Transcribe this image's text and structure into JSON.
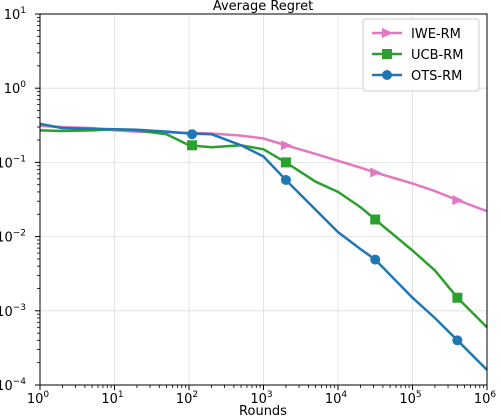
{
  "chart_data": {
    "type": "line",
    "title": "Average Regret",
    "xlabel": "Rounds",
    "ylabel": "",
    "x_scale": "log",
    "y_scale": "log",
    "xlim": [
      1,
      1000000
    ],
    "ylim": [
      0.0001,
      10
    ],
    "grid": true,
    "legend_position": "top-right",
    "x_ticks": [
      {
        "value": 1,
        "base": "10",
        "exp": "0"
      },
      {
        "value": 10,
        "base": "10",
        "exp": "1"
      },
      {
        "value": 100,
        "base": "10",
        "exp": "2"
      },
      {
        "value": 1000,
        "base": "10",
        "exp": "3"
      },
      {
        "value": 10000,
        "base": "10",
        "exp": "4"
      },
      {
        "value": 100000,
        "base": "10",
        "exp": "5"
      },
      {
        "value": 1000000,
        "base": "10",
        "exp": "6"
      }
    ],
    "y_ticks": [
      {
        "value": 0.0001,
        "base": "10",
        "exp": "−4"
      },
      {
        "value": 0.001,
        "base": "10",
        "exp": "−3"
      },
      {
        "value": 0.01,
        "base": "10",
        "exp": "−2"
      },
      {
        "value": 0.1,
        "base": "10",
        "exp": "−1"
      },
      {
        "value": 1,
        "base": "10",
        "exp": "0"
      },
      {
        "value": 10,
        "base": "10",
        "exp": "1"
      }
    ],
    "series": [
      {
        "name": "IWE-RM",
        "color": "#e377c2",
        "marker": "triangle-right",
        "points": [
          [
            1,
            0.31
          ],
          [
            2,
            0.3
          ],
          [
            5,
            0.29
          ],
          [
            10,
            0.27
          ],
          [
            20,
            0.26
          ],
          [
            50,
            0.255
          ],
          [
            100,
            0.25
          ],
          [
            200,
            0.245
          ],
          [
            500,
            0.23
          ],
          [
            1000,
            0.21
          ],
          [
            2000,
            0.17
          ],
          [
            5000,
            0.13
          ],
          [
            10000,
            0.105
          ],
          [
            20000,
            0.085
          ],
          [
            31600,
            0.073
          ],
          [
            100000,
            0.052
          ],
          [
            200000,
            0.041
          ],
          [
            400000,
            0.031
          ],
          [
            1000000,
            0.022
          ]
        ],
        "marker_points": [
          [
            2000,
            0.17
          ],
          [
            31600,
            0.073
          ],
          [
            400000,
            0.031
          ]
        ]
      },
      {
        "name": "UCB-RM",
        "color": "#2ca02c",
        "marker": "square",
        "points": [
          [
            1,
            0.27
          ],
          [
            2,
            0.265
          ],
          [
            5,
            0.27
          ],
          [
            10,
            0.28
          ],
          [
            20,
            0.27
          ],
          [
            50,
            0.24
          ],
          [
            100,
            0.17
          ],
          [
            200,
            0.16
          ],
          [
            500,
            0.17
          ],
          [
            1000,
            0.15
          ],
          [
            2000,
            0.1
          ],
          [
            5000,
            0.055
          ],
          [
            10000,
            0.04
          ],
          [
            20000,
            0.025
          ],
          [
            31600,
            0.017
          ],
          [
            100000,
            0.0065
          ],
          [
            200000,
            0.0035
          ],
          [
            400000,
            0.0015
          ],
          [
            1000000,
            0.0006
          ]
        ],
        "marker_points": [
          [
            110,
            0.17
          ],
          [
            2000,
            0.1
          ],
          [
            31600,
            0.017
          ],
          [
            400000,
            0.0015
          ]
        ]
      },
      {
        "name": "OTS-RM",
        "color": "#1f77b4",
        "marker": "circle",
        "points": [
          [
            1,
            0.33
          ],
          [
            2,
            0.29
          ],
          [
            5,
            0.285
          ],
          [
            10,
            0.28
          ],
          [
            20,
            0.275
          ],
          [
            50,
            0.26
          ],
          [
            100,
            0.245
          ],
          [
            200,
            0.24
          ],
          [
            500,
            0.17
          ],
          [
            1000,
            0.12
          ],
          [
            2000,
            0.058
          ],
          [
            5000,
            0.023
          ],
          [
            10000,
            0.0115
          ],
          [
            20000,
            0.0068
          ],
          [
            31600,
            0.0049
          ],
          [
            100000,
            0.0015
          ],
          [
            200000,
            0.0008
          ],
          [
            400000,
            0.0004
          ],
          [
            1000000,
            0.00016
          ]
        ],
        "marker_points": [
          [
            110,
            0.24
          ],
          [
            2000,
            0.058
          ],
          [
            31600,
            0.0049
          ],
          [
            400000,
            0.0004
          ]
        ]
      }
    ]
  }
}
